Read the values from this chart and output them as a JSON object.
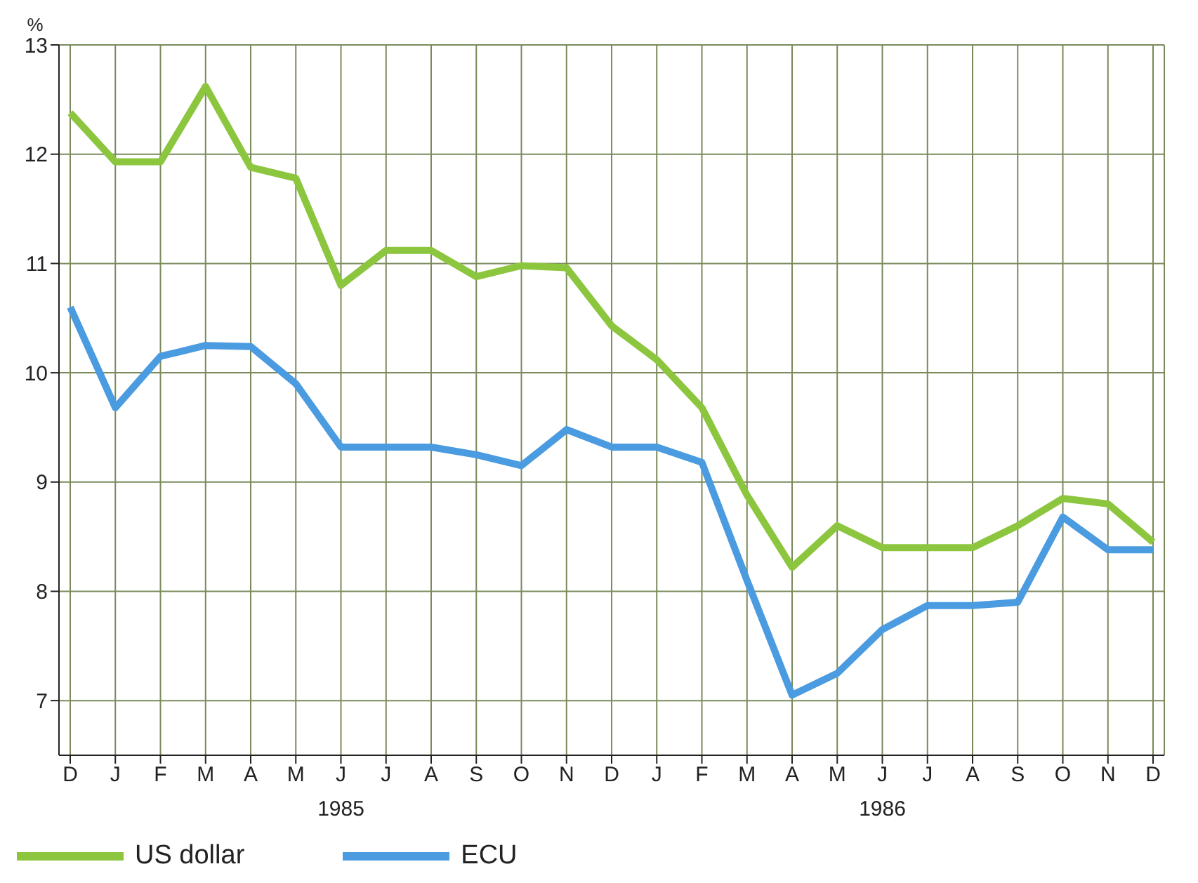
{
  "chart_data": {
    "type": "line",
    "ylabel": "%",
    "categories": [
      "D",
      "J",
      "F",
      "M",
      "A",
      "M",
      "J",
      "J",
      "A",
      "S",
      "O",
      "N",
      "D",
      "J",
      "F",
      "M",
      "A",
      "M",
      "J",
      "J",
      "A",
      "S",
      "O",
      "N",
      "D"
    ],
    "series": [
      {
        "name": "US dollar",
        "color": "#8cc63f",
        "values": [
          12.38,
          11.93,
          11.93,
          12.62,
          11.88,
          11.78,
          10.8,
          11.12,
          11.12,
          10.88,
          10.98,
          10.96,
          10.43,
          10.12,
          9.68,
          8.88,
          8.22,
          8.6,
          8.4,
          8.4,
          8.4,
          8.6,
          8.85,
          8.8,
          8.45
        ]
      },
      {
        "name": "ECU",
        "color": "#4a9be0",
        "values": [
          10.6,
          9.68,
          10.15,
          10.25,
          10.24,
          9.9,
          9.32,
          9.32,
          9.32,
          9.25,
          9.15,
          9.48,
          9.32,
          9.32,
          9.18,
          8.1,
          7.05,
          7.25,
          7.65,
          7.87,
          7.87,
          7.9,
          8.68,
          8.38,
          8.38
        ]
      }
    ],
    "ylim": [
      6.5,
      13
    ],
    "yticks": [
      7,
      8,
      9,
      10,
      11,
      12,
      13
    ],
    "grid": true,
    "legend": "bottom left",
    "marker": "none",
    "line_style": "solid",
    "annotations": [
      "1985",
      "1986"
    ]
  }
}
